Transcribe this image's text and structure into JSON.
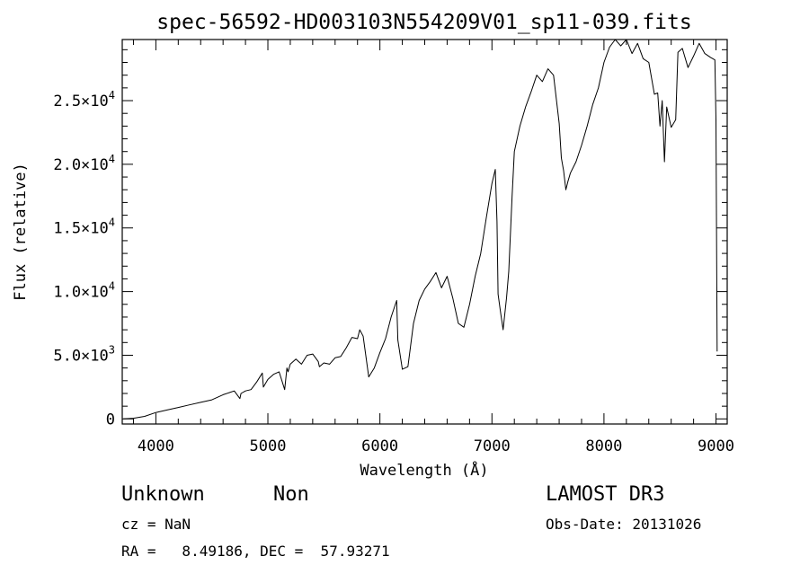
{
  "chart_data": {
    "type": "line",
    "title": "spec-56592-HD003103N554209V01_sp11-039.fits",
    "xlabel": "Wavelength (Å)",
    "ylabel": "Flux (relative)",
    "xlim": [
      3700,
      9100
    ],
    "ylim": [
      -400,
      29800
    ],
    "x_ticks": [
      4000,
      5000,
      6000,
      7000,
      8000,
      9000
    ],
    "y_ticks": [
      {
        "value": 0,
        "mantissa": "0",
        "exponent": ""
      },
      {
        "value": 5000,
        "mantissa": "5.0×10",
        "exponent": "3"
      },
      {
        "value": 10000,
        "mantissa": "1.0×10",
        "exponent": "4"
      },
      {
        "value": 15000,
        "mantissa": "1.5×10",
        "exponent": "4"
      },
      {
        "value": 20000,
        "mantissa": "2.0×10",
        "exponent": "4"
      },
      {
        "value": 25000,
        "mantissa": "2.5×10",
        "exponent": "4"
      }
    ],
    "grid": false,
    "series": [
      {
        "color": "#000000",
        "x": [
          3710,
          3800,
          3900,
          4000,
          4100,
          4200,
          4300,
          4400,
          4500,
          4600,
          4700,
          4750,
          4760,
          4800,
          4850,
          4900,
          4950,
          4960,
          5000,
          5050,
          5100,
          5150,
          5170,
          5180,
          5200,
          5250,
          5300,
          5350,
          5400,
          5450,
          5460,
          5500,
          5550,
          5600,
          5650,
          5700,
          5750,
          5800,
          5820,
          5850,
          5900,
          5950,
          6000,
          6050,
          6100,
          6150,
          6160,
          6200,
          6250,
          6300,
          6350,
          6400,
          6450,
          6500,
          6550,
          6600,
          6650,
          6700,
          6750,
          6800,
          6850,
          6900,
          6950,
          7000,
          7030,
          7045,
          7055,
          7080,
          7100,
          7130,
          7150,
          7180,
          7200,
          7250,
          7300,
          7350,
          7400,
          7450,
          7500,
          7550,
          7600,
          7620,
          7640,
          7660,
          7680,
          7700,
          7750,
          7800,
          7850,
          7900,
          7950,
          8000,
          8050,
          8100,
          8150,
          8200,
          8250,
          8300,
          8350,
          8400,
          8450,
          8480,
          8500,
          8520,
          8540,
          8560,
          8600,
          8640,
          8660,
          8700,
          8750,
          8800,
          8850,
          8900,
          8950,
          8990,
          9000,
          9010
        ],
        "y": [
          0,
          50,
          200,
          500,
          700,
          900,
          1100,
          1300,
          1500,
          1900,
          2200,
          1600,
          2000,
          2200,
          2300,
          2900,
          3600,
          2500,
          3100,
          3500,
          3700,
          2300,
          4000,
          3700,
          4300,
          4700,
          4300,
          5000,
          5100,
          4500,
          4100,
          4400,
          4300,
          4800,
          4900,
          5600,
          6400,
          6300,
          7000,
          6500,
          3300,
          4000,
          5200,
          6300,
          8000,
          9300,
          6200,
          3900,
          4100,
          7500,
          9300,
          10200,
          10800,
          11500,
          10300,
          11200,
          9500,
          7500,
          7200,
          9000,
          11200,
          13000,
          15800,
          18500,
          19600,
          15500,
          9800,
          8200,
          7000,
          9500,
          11600,
          17500,
          21000,
          23000,
          24500,
          25700,
          27000,
          26500,
          27500,
          27000,
          23200,
          20500,
          19500,
          18000,
          18700,
          19300,
          20200,
          21500,
          23000,
          24700,
          26000,
          28000,
          29200,
          29800,
          29300,
          29800,
          28700,
          29500,
          28300,
          28000,
          25500,
          25600,
          23000,
          25000,
          20200,
          24500,
          22900,
          23500,
          28800,
          29100,
          27600,
          28500,
          29500,
          28700,
          28400,
          28200,
          23500,
          5300
        ]
      }
    ]
  },
  "info": {
    "object_class": "Unknown",
    "object_subclass": "Non",
    "survey": "LAMOST DR3",
    "cz_line": "cz = NaN",
    "obs_date_line": "Obs-Date: 20131026",
    "coords_line": "RA =   8.49186, DEC =  57.93271"
  }
}
